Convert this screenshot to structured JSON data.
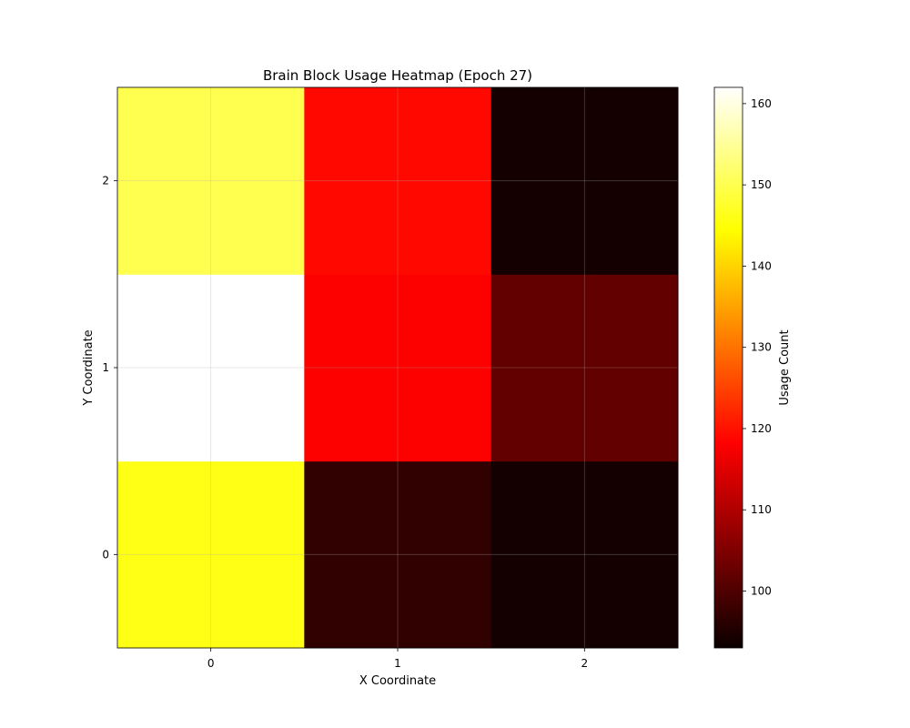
{
  "chart_data": {
    "type": "heatmap",
    "title": "Brain Block Usage Heatmap (Epoch 27)",
    "xlabel": "X Coordinate",
    "ylabel": "Y Coordinate",
    "x_ticks": [
      "0",
      "1",
      "2"
    ],
    "y_ticks": [
      "0",
      "1",
      "2"
    ],
    "rows_bottom_to_top": [
      [
        146,
        97,
        94
      ],
      [
        162,
        118,
        102
      ],
      [
        150,
        119,
        94
      ]
    ],
    "colormap": "hot",
    "colorbar": {
      "label": "Usage Count",
      "range": [
        93,
        162
      ],
      "ticks": [
        100,
        110,
        120,
        130,
        140,
        150,
        160
      ]
    },
    "grid": true
  }
}
